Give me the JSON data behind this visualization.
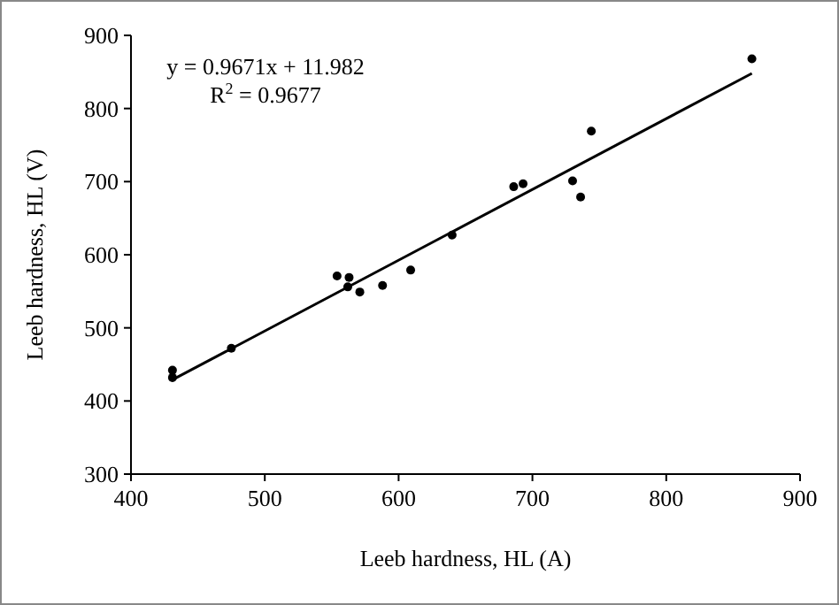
{
  "chart_data": {
    "type": "scatter",
    "xlabel": "Leeb hardness, HL (A)",
    "ylabel": "Leeb hardness, HL (V)",
    "xlim": [
      400,
      900
    ],
    "xticks": [
      400,
      500,
      600,
      700,
      800,
      900
    ],
    "ylim": [
      300,
      900
    ],
    "yticks": [
      300,
      400,
      500,
      600,
      700,
      800,
      900
    ],
    "grid": false,
    "series": [
      {
        "color": "#000000",
        "marker": "circle",
        "x": [
          431,
          431,
          475,
          554,
          563,
          562,
          571,
          588,
          609,
          640,
          686,
          693,
          730,
          736,
          744,
          864
        ],
        "values": [
          442,
          432,
          472,
          571,
          569,
          556,
          549,
          558,
          579,
          627,
          693,
          697,
          701,
          679,
          769,
          868
        ]
      },
      {
        "type": "line",
        "color": "#000000",
        "x": [
          430,
          864
        ],
        "values": [
          428,
          848
        ]
      }
    ],
    "annotations": [
      "y = 0.9671x + 11.982",
      "R$^{2}$ = 0.9677"
    ]
  }
}
